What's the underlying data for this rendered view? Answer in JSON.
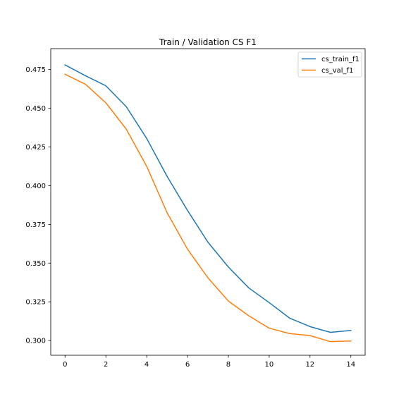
{
  "chart_data": {
    "type": "line",
    "title": "Train / Validation CS F1",
    "xlabel": "",
    "ylabel": "",
    "xlim": [
      -0.7,
      14.7
    ],
    "ylim": [
      0.2905,
      0.4885
    ],
    "xticks": [
      0,
      2,
      4,
      6,
      8,
      10,
      12,
      14
    ],
    "xtick_labels": [
      "0",
      "2",
      "4",
      "6",
      "8",
      "10",
      "12",
      "14"
    ],
    "yticks": [
      0.3,
      0.325,
      0.35,
      0.375,
      0.4,
      0.425,
      0.45,
      0.475
    ],
    "ytick_labels": [
      "0.300",
      "0.325",
      "0.350",
      "0.375",
      "0.400",
      "0.425",
      "0.450",
      "0.475"
    ],
    "grid": false,
    "legend_position": "top-right",
    "x": [
      0,
      1,
      2,
      3,
      4,
      5,
      6,
      7,
      8,
      9,
      10,
      11,
      12,
      13,
      14
    ],
    "series": [
      {
        "name": "cs_train_f1",
        "color": "#1f77b4",
        "values": [
          0.478,
          0.471,
          0.4645,
          0.451,
          0.4305,
          0.406,
          0.384,
          0.3635,
          0.3475,
          0.334,
          0.3245,
          0.3145,
          0.309,
          0.3053,
          0.3065
        ]
      },
      {
        "name": "cs_val_f1",
        "color": "#ff7f0e",
        "values": [
          0.472,
          0.4655,
          0.4535,
          0.4365,
          0.4125,
          0.3825,
          0.359,
          0.3405,
          0.3255,
          0.316,
          0.308,
          0.3045,
          0.3032,
          0.2993,
          0.2997
        ]
      }
    ]
  }
}
